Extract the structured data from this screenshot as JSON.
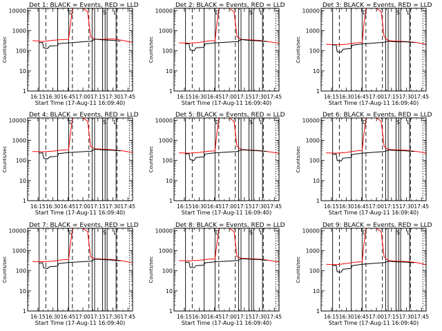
{
  "figure": {
    "title_template": "Det {n}: BLACK = Events, RED = LLD",
    "ylabel": "Counts/sec",
    "xlabel": "Start Time (17-Aug-11 16:09:40)",
    "xticks": [
      "16:15",
      "16:30",
      "16:45",
      "17:00",
      "17:15",
      "17:30",
      "17:45"
    ],
    "yticks": [
      "1",
      "10",
      "100",
      "1000",
      "10000"
    ],
    "flags": [
      "D",
      "S",
      "L"
    ]
  },
  "chart_data": {
    "type": "line",
    "yscale": "log",
    "ylim": [
      1,
      13000
    ],
    "xlim_minutes": [
      -5,
      100
    ],
    "x_unit": "minutes since 16:09:40",
    "xtick_minutes": [
      5.33,
      20.33,
      35.33,
      50.33,
      65.33,
      80.33,
      95.33
    ],
    "dashed_markers_minutes": [
      13.2,
      39.8,
      56.3,
      84.3,
      96.8
    ],
    "solid_markers_minutes": [
      6.5,
      25.0,
      36.0,
      59.5,
      62.0,
      70.0,
      72.5,
      74.5,
      83.5
    ],
    "flag_minutes": [
      38.5,
      72.0,
      82.5
    ],
    "panels": [
      {
        "det": 1,
        "series": [
          {
            "name": "RED = LLD",
            "color": "#ff0000",
            "x": [
              0,
              10,
              20,
              30,
              36,
              38,
              40,
              50,
              55,
              58,
              62,
              70,
              80,
              90,
              100
            ],
            "y": [
              320,
              290,
              330,
              360,
              370,
              2500,
              13000,
              13000,
              9000,
              500,
              380,
              370,
              390,
              330,
              260
            ]
          },
          {
            "name": "BLACK = Events",
            "color": "#000000",
            "x": [
              6,
              10,
              11,
              15,
              17,
              25,
              26,
              33,
              36,
              59,
              62,
              70,
              80,
              88
            ],
            "y": [
              250,
              260,
              140,
              130,
              170,
              180,
              230,
              240,
              250,
              300,
              380,
              350,
              330,
              300
            ]
          }
        ]
      },
      {
        "det": 2,
        "series": [
          {
            "name": "RED = LLD",
            "color": "#ff0000",
            "x": [
              0,
              10,
              20,
              30,
              36,
              38,
              40,
              50,
              55,
              58,
              62,
              70,
              80,
              90,
              100
            ],
            "y": [
              250,
              240,
              260,
              310,
              320,
              2500,
              13000,
              13000,
              9000,
              500,
              370,
              350,
              330,
              280,
              240
            ]
          },
          {
            "name": "BLACK = Events",
            "color": "#000000",
            "x": [
              6,
              10,
              11,
              15,
              17,
              25,
              26,
              33,
              36,
              59,
              62,
              70,
              80,
              88
            ],
            "y": [
              220,
              230,
              110,
              100,
              140,
              150,
              220,
              240,
              250,
              290,
              360,
              330,
              310,
              290
            ]
          }
        ]
      },
      {
        "det": 3,
        "series": [
          {
            "name": "RED = LLD",
            "color": "#ff0000",
            "x": [
              0,
              10,
              20,
              30,
              36,
              38,
              40,
              50,
              55,
              58,
              62,
              70,
              80,
              90,
              100
            ],
            "y": [
              210,
              200,
              210,
              250,
              260,
              2500,
              13000,
              13000,
              9000,
              500,
              320,
              300,
              290,
              260,
              210
            ]
          },
          {
            "name": "BLACK = Events",
            "color": "#000000",
            "x": [
              6,
              10,
              11,
              15,
              17,
              25,
              26,
              33,
              36,
              59,
              62,
              70,
              80,
              88
            ],
            "y": [
              190,
              200,
              90,
              85,
              120,
              130,
              190,
              210,
              220,
              270,
              300,
              280,
              280,
              260
            ]
          }
        ]
      },
      {
        "det": 4,
        "series": [
          {
            "name": "RED = LLD",
            "color": "#ff0000",
            "x": [
              0,
              10,
              20,
              30,
              36,
              38,
              40,
              50,
              55,
              58,
              62,
              70,
              80,
              90,
              100
            ],
            "y": [
              280,
              270,
              290,
              330,
              340,
              2500,
              13000,
              13000,
              9000,
              500,
              380,
              360,
              340,
              300,
              250
            ]
          },
          {
            "name": "BLACK = Events",
            "color": "#000000",
            "x": [
              6,
              10,
              11,
              15,
              17,
              25,
              26,
              33,
              36,
              59,
              62,
              70,
              80,
              88
            ],
            "y": [
              230,
              240,
              130,
              120,
              150,
              160,
              220,
              240,
              250,
              290,
              360,
              340,
              320,
              300
            ]
          }
        ]
      },
      {
        "det": 5,
        "series": [
          {
            "name": "RED = LLD",
            "color": "#ff0000",
            "x": [
              0,
              10,
              20,
              30,
              36,
              38,
              40,
              50,
              55,
              58,
              62,
              70,
              80,
              90,
              100
            ],
            "y": [
              240,
              230,
              250,
              290,
              300,
              2500,
              13000,
              13000,
              9000,
              500,
              350,
              330,
              310,
              270,
              230
            ]
          },
          {
            "name": "BLACK = Events",
            "color": "#000000",
            "x": [
              6,
              10,
              11,
              15,
              17,
              25,
              26,
              33,
              36,
              59,
              62,
              70,
              80,
              88
            ],
            "y": [
              210,
              220,
              110,
              100,
              140,
              150,
              210,
              230,
              240,
              280,
              340,
              320,
              300,
              280
            ]
          }
        ]
      },
      {
        "det": 6,
        "series": [
          {
            "name": "RED = LLD",
            "color": "#ff0000",
            "x": [
              0,
              10,
              20,
              30,
              36,
              38,
              40,
              50,
              55,
              58,
              62,
              70,
              80,
              90,
              100
            ],
            "y": [
              240,
              230,
              250,
              300,
              310,
              2500,
              13000,
              13000,
              9000,
              500,
              350,
              340,
              320,
              280,
              240
            ]
          },
          {
            "name": "BLACK = Events",
            "color": "#000000",
            "x": [
              6,
              10,
              11,
              15,
              17,
              25,
              26,
              33,
              36,
              59,
              62,
              70,
              80,
              88
            ],
            "y": [
              200,
              210,
              100,
              95,
              130,
              140,
              200,
              220,
              230,
              280,
              330,
              310,
              300,
              280
            ]
          }
        ]
      },
      {
        "det": 7,
        "series": [
          {
            "name": "RED = LLD",
            "color": "#ff0000",
            "x": [
              0,
              10,
              20,
              30,
              36,
              38,
              40,
              50,
              55,
              58,
              62,
              70,
              80,
              90,
              100
            ],
            "y": [
              290,
              280,
              300,
              350,
              360,
              2500,
              13000,
              13000,
              9000,
              500,
              400,
              380,
              360,
              310,
              250
            ]
          },
          {
            "name": "BLACK = Events",
            "color": "#000000",
            "x": [
              6,
              10,
              11,
              15,
              17,
              25,
              26,
              33,
              36,
              59,
              62,
              70,
              80,
              88
            ],
            "y": [
              240,
              250,
              140,
              130,
              160,
              170,
              230,
              250,
              260,
              300,
              380,
              360,
              340,
              310
            ]
          }
        ]
      },
      {
        "det": 8,
        "series": [
          {
            "name": "RED = LLD",
            "color": "#ff0000",
            "x": [
              0,
              10,
              20,
              30,
              36,
              38,
              40,
              50,
              55,
              58,
              62,
              70,
              80,
              90,
              100
            ],
            "y": [
              320,
              310,
              330,
              380,
              390,
              2500,
              13000,
              13000,
              9000,
              500,
              420,
              400,
              380,
              330,
              270
            ]
          },
          {
            "name": "BLACK = Events",
            "color": "#000000",
            "x": [
              6,
              10,
              11,
              15,
              17,
              25,
              26,
              33,
              36,
              59,
              62,
              70,
              80,
              88
            ],
            "y": [
              260,
              270,
              150,
              140,
              180,
              190,
              250,
              270,
              280,
              320,
              400,
              380,
              360,
              330
            ]
          }
        ]
      },
      {
        "det": 9,
        "series": [
          {
            "name": "RED = LLD",
            "color": "#ff0000",
            "x": [
              0,
              10,
              20,
              30,
              36,
              38,
              40,
              50,
              55,
              58,
              62,
              70,
              80,
              90,
              100
            ],
            "y": [
              210,
              200,
              230,
              270,
              280,
              2500,
              13000,
              13000,
              9000,
              500,
              320,
              300,
              290,
              260,
              200
            ]
          },
          {
            "name": "BLACK = Events",
            "color": "#000000",
            "x": [
              6,
              10,
              11,
              15,
              17,
              25,
              26,
              33,
              36,
              59,
              62,
              70,
              80,
              88
            ],
            "y": [
              180,
              190,
              90,
              85,
              120,
              130,
              180,
              200,
              210,
              260,
              300,
              280,
              270,
              250
            ]
          }
        ]
      }
    ]
  }
}
